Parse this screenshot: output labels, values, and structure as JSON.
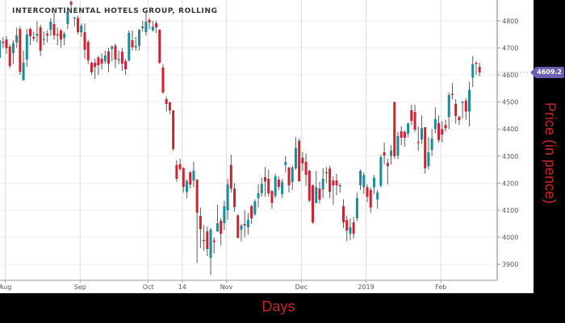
{
  "chart_data": {
    "type": "candlestick",
    "title": "INTERCONTINENTAL HOTELS GROUP, ROLLING",
    "xlabel": "Days",
    "ylabel": "Price (in pence)",
    "ylim": [
      3841,
      4877
    ],
    "y_ticks": [
      3900,
      4000,
      4100,
      4200,
      4300,
      4400,
      4500,
      4600,
      4700,
      4800
    ],
    "x_ticks": [
      {
        "label": "Aug",
        "date": "2018-08-01"
      },
      {
        "label": "Sep",
        "date": "2018-09-03"
      },
      {
        "label": "Oct",
        "date": "2018-10-01"
      },
      {
        "label": "14",
        "date": "2018-10-15"
      },
      {
        "label": "Nov",
        "date": "2018-11-01"
      },
      {
        "label": "Dec",
        "date": "2018-12-03"
      },
      {
        "label": "2019",
        "date": "2019-01-02"
      },
      {
        "label": "Feb",
        "date": "2019-02-01"
      }
    ],
    "last_price": "4609.2",
    "grid": true,
    "colors": {
      "up": "#1a8b9b",
      "down": "#d0212f",
      "wick": "#5a5a5a",
      "last_price_tag": "#6a5fb0",
      "axis_title": "#c9252c"
    },
    "columns": [
      "date",
      "open",
      "high",
      "low",
      "close"
    ],
    "candles": [
      [
        "2018-07-30",
        4663,
        4745,
        4640,
        4728
      ],
      [
        "2018-07-31",
        4722,
        4740,
        4700,
        4718
      ],
      [
        "2018-08-01",
        4731,
        4743,
        4678,
        4699
      ],
      [
        "2018-08-02",
        4705,
        4712,
        4625,
        4633
      ],
      [
        "2018-08-03",
        4681,
        4728,
        4640,
        4717
      ],
      [
        "2018-08-06",
        4720,
        4775,
        4700,
        4746
      ],
      [
        "2018-08-07",
        4770,
        4780,
        4600,
        4612
      ],
      [
        "2018-08-08",
        4580,
        4690,
        4580,
        4645
      ],
      [
        "2018-08-09",
        4657,
        4770,
        4630,
        4750
      ],
      [
        "2018-08-10",
        4770,
        4775,
        4710,
        4743
      ],
      [
        "2018-08-13",
        4740,
        4760,
        4725,
        4735
      ],
      [
        "2018-08-14",
        4745,
        4800,
        4720,
        4752
      ],
      [
        "2018-08-15",
        4776,
        4785,
        4670,
        4690
      ],
      [
        "2018-08-16",
        4730,
        4760,
        4710,
        4733
      ],
      [
        "2018-08-17",
        4752,
        4765,
        4720,
        4746
      ],
      [
        "2018-08-20",
        4767,
        4810,
        4745,
        4797
      ],
      [
        "2018-08-21",
        4788,
        4830,
        4730,
        4746
      ],
      [
        "2018-08-22",
        4750,
        4775,
        4710,
        4748
      ],
      [
        "2018-08-23",
        4764,
        4770,
        4700,
        4731
      ],
      [
        "2018-08-24",
        4737,
        4760,
        4710,
        4752
      ],
      [
        "2018-08-28",
        4788,
        4850,
        4770,
        4833
      ],
      [
        "2018-08-29",
        4870,
        4875,
        4850,
        4860
      ],
      [
        "2018-08-30",
        4810,
        4815,
        4780,
        4813
      ],
      [
        "2018-08-31",
        4810,
        4820,
        4750,
        4758
      ],
      [
        "2018-09-03",
        4758,
        4790,
        4740,
        4782
      ],
      [
        "2018-09-04",
        4758,
        4790,
        4660,
        4693
      ],
      [
        "2018-09-05",
        4722,
        4730,
        4640,
        4654
      ],
      [
        "2018-09-06",
        4645,
        4650,
        4600,
        4610
      ],
      [
        "2018-09-07",
        4645,
        4660,
        4585,
        4630
      ],
      [
        "2018-09-10",
        4665,
        4670,
        4600,
        4636
      ],
      [
        "2018-09-11",
        4660,
        4680,
        4620,
        4642
      ],
      [
        "2018-09-12",
        4650,
        4690,
        4640,
        4672
      ],
      [
        "2018-09-13",
        4687,
        4700,
        4610,
        4642
      ],
      [
        "2018-09-14",
        4696,
        4710,
        4650,
        4705
      ],
      [
        "2018-09-17",
        4708,
        4715,
        4625,
        4657
      ],
      [
        "2018-09-18",
        4654,
        4690,
        4640,
        4658
      ],
      [
        "2018-09-19",
        4686,
        4700,
        4615,
        4642
      ],
      [
        "2018-09-20",
        4651,
        4660,
        4600,
        4621
      ],
      [
        "2018-09-21",
        4654,
        4765,
        4650,
        4755
      ],
      [
        "2018-09-24",
        4728,
        4765,
        4690,
        4702
      ],
      [
        "2018-09-25",
        4702,
        4740,
        4690,
        4708
      ],
      [
        "2018-09-26",
        4708,
        4770,
        4690,
        4767
      ],
      [
        "2018-09-27",
        4773,
        4800,
        4760,
        4779
      ],
      [
        "2018-09-28",
        4758,
        4830,
        4745,
        4797
      ],
      [
        "2018-10-01",
        4803,
        4810,
        4770,
        4794
      ],
      [
        "2018-10-02",
        4765,
        4800,
        4760,
        4779
      ],
      [
        "2018-10-03",
        4791,
        4800,
        4755,
        4776
      ],
      [
        "2018-10-04",
        4767,
        4770,
        4640,
        4645
      ],
      [
        "2018-10-05",
        4627,
        4640,
        4530,
        4535
      ],
      [
        "2018-10-08",
        4511,
        4520,
        4465,
        4493
      ],
      [
        "2018-10-09",
        4499,
        4500,
        4455,
        4469
      ],
      [
        "2018-10-10",
        4469,
        4470,
        4320,
        4326
      ],
      [
        "2018-10-11",
        4267,
        4285,
        4205,
        4216
      ],
      [
        "2018-10-12",
        4270,
        4290,
        4245,
        4252
      ],
      [
        "2018-10-15",
        4255,
        4260,
        4165,
        4186
      ],
      [
        "2018-10-16",
        4168,
        4215,
        4145,
        4207
      ],
      [
        "2018-10-17",
        4240,
        4245,
        4180,
        4195
      ],
      [
        "2018-10-18",
        4210,
        4280,
        4185,
        4246
      ],
      [
        "2018-10-19",
        4213,
        4215,
        3905,
        4091
      ],
      [
        "2018-10-22",
        4079,
        4110,
        3960,
        4031
      ],
      [
        "2018-10-23",
        3990,
        4045,
        3950,
        3987
      ],
      [
        "2018-10-24",
        4022,
        4040,
        3930,
        3957
      ],
      [
        "2018-10-25",
        3924,
        4035,
        3860,
        4028
      ],
      [
        "2018-10-26",
        3988,
        4000,
        3940,
        3983
      ],
      [
        "2018-10-29",
        4022,
        4120,
        4020,
        4052
      ],
      [
        "2018-10-30",
        4061,
        4070,
        3970,
        4013
      ],
      [
        "2018-10-31",
        4052,
        4135,
        4027,
        4115
      ],
      [
        "2018-11-01",
        4100,
        4215,
        4065,
        4195
      ],
      [
        "2018-11-02",
        4267,
        4305,
        4165,
        4180
      ],
      [
        "2018-11-05",
        4180,
        4200,
        4095,
        4112
      ],
      [
        "2018-11-06",
        4081,
        4085,
        3995,
        3998
      ],
      [
        "2018-11-07",
        4028,
        4050,
        3985,
        4043
      ],
      [
        "2018-11-08",
        4049,
        4100,
        4000,
        4043
      ],
      [
        "2018-11-09",
        4037,
        4090,
        4010,
        4064
      ],
      [
        "2018-11-12",
        4115,
        4120,
        4050,
        4070
      ],
      [
        "2018-11-13",
        4085,
        4140,
        4080,
        4133
      ],
      [
        "2018-11-14",
        4145,
        4195,
        4110,
        4163
      ],
      [
        "2018-11-15",
        4163,
        4220,
        4150,
        4198
      ],
      [
        "2018-11-16",
        4222,
        4260,
        4150,
        4207
      ],
      [
        "2018-11-19",
        4216,
        4250,
        4150,
        4162
      ],
      [
        "2018-11-20",
        4171,
        4175,
        4105,
        4127
      ],
      [
        "2018-11-21",
        4153,
        4235,
        4145,
        4225
      ],
      [
        "2018-11-22",
        4213,
        4225,
        4175,
        4186
      ],
      [
        "2018-11-23",
        4160,
        4215,
        4145,
        4204
      ],
      [
        "2018-11-26",
        4267,
        4300,
        4240,
        4278
      ],
      [
        "2018-11-27",
        4258,
        4260,
        4165,
        4192
      ],
      [
        "2018-11-28",
        4204,
        4265,
        4175,
        4258
      ],
      [
        "2018-11-29",
        4255,
        4370,
        4250,
        4330
      ],
      [
        "2018-11-30",
        4356,
        4365,
        4205,
        4207
      ],
      [
        "2018-12-03",
        4294,
        4315,
        4245,
        4273
      ],
      [
        "2018-12-04",
        4279,
        4310,
        4190,
        4231
      ],
      [
        "2018-12-05",
        4246,
        4250,
        4130,
        4136
      ],
      [
        "2018-12-06",
        4192,
        4195,
        4050,
        4055
      ],
      [
        "2018-12-07",
        4127,
        4245,
        4125,
        4185
      ],
      [
        "2018-12-10",
        4180,
        4205,
        4125,
        4139
      ],
      [
        "2018-12-11",
        4177,
        4255,
        4145,
        4216
      ],
      [
        "2018-12-12",
        4240,
        4260,
        4200,
        4237
      ],
      [
        "2018-12-13",
        4254,
        4265,
        4145,
        4168
      ],
      [
        "2018-12-14",
        4210,
        4225,
        4120,
        4192
      ],
      [
        "2018-12-17",
        4210,
        4235,
        4155,
        4192
      ],
      [
        "2018-12-18",
        4192,
        4200,
        4165,
        4190
      ],
      [
        "2018-12-19",
        4115,
        4140,
        4035,
        4055
      ],
      [
        "2018-12-20",
        4064,
        4080,
        3985,
        4025
      ],
      [
        "2018-12-21",
        4013,
        4070,
        3990,
        4037
      ],
      [
        "2018-12-24",
        4055,
        4075,
        3995,
        4013
      ],
      [
        "2018-12-27",
        4070,
        4165,
        4060,
        4145
      ],
      [
        "2018-12-28",
        4192,
        4250,
        4175,
        4245
      ],
      [
        "2018-12-31",
        4185,
        4240,
        4160,
        4230
      ],
      [
        "2019-01-02",
        4185,
        4195,
        4130,
        4150
      ],
      [
        "2019-01-03",
        4175,
        4185,
        4090,
        4110
      ],
      [
        "2019-01-04",
        4185,
        4230,
        4160,
        4220
      ],
      [
        "2019-01-07",
        4140,
        4175,
        4105,
        4165
      ],
      [
        "2019-01-08",
        4190,
        4305,
        4185,
        4296
      ],
      [
        "2019-01-09",
        4314,
        4350,
        4270,
        4302
      ],
      [
        "2019-01-10",
        4275,
        4290,
        4195,
        4263
      ],
      [
        "2019-01-11",
        4300,
        4340,
        4270,
        4320
      ],
      [
        "2019-01-14",
        4500,
        4500,
        4290,
        4300
      ],
      [
        "2019-01-15",
        4302,
        4390,
        4290,
        4374
      ],
      [
        "2019-01-16",
        4392,
        4410,
        4340,
        4368
      ],
      [
        "2019-01-17",
        4390,
        4395,
        4335,
        4368
      ],
      [
        "2019-01-18",
        4383,
        4425,
        4370,
        4420
      ],
      [
        "2019-01-21",
        4470,
        4490,
        4415,
        4430
      ],
      [
        "2019-01-22",
        4463,
        4490,
        4390,
        4398
      ],
      [
        "2019-01-23",
        4352,
        4410,
        4320,
        4348
      ],
      [
        "2019-01-24",
        4362,
        4450,
        4345,
        4403
      ],
      [
        "2019-01-25",
        4407,
        4407,
        4235,
        4255
      ],
      [
        "2019-01-28",
        4263,
        4370,
        4250,
        4314
      ],
      [
        "2019-01-29",
        4323,
        4400,
        4300,
        4365
      ],
      [
        "2019-01-30",
        4400,
        4480,
        4385,
        4437
      ],
      [
        "2019-01-31",
        4422,
        4450,
        4350,
        4359
      ],
      [
        "2019-02-01",
        4400,
        4430,
        4350,
        4380
      ],
      [
        "2019-02-04",
        4415,
        4435,
        4390,
        4403
      ],
      [
        "2019-02-05",
        4445,
        4535,
        4400,
        4526
      ],
      [
        "2019-02-06",
        4530,
        4570,
        4510,
        4527
      ],
      [
        "2019-02-07",
        4493,
        4510,
        4420,
        4448
      ],
      [
        "2019-02-08",
        4445,
        4450,
        4415,
        4433
      ],
      [
        "2019-02-11",
        4497,
        4505,
        4440,
        4500
      ],
      [
        "2019-02-12",
        4505,
        4515,
        4435,
        4465
      ],
      [
        "2019-02-13",
        4465,
        4575,
        4410,
        4545
      ],
      [
        "2019-02-14",
        4590,
        4670,
        4555,
        4640
      ],
      [
        "2019-02-15",
        4645,
        4650,
        4600,
        4643
      ],
      [
        "2019-02-18",
        4630,
        4645,
        4595,
        4609.2
      ]
    ]
  }
}
